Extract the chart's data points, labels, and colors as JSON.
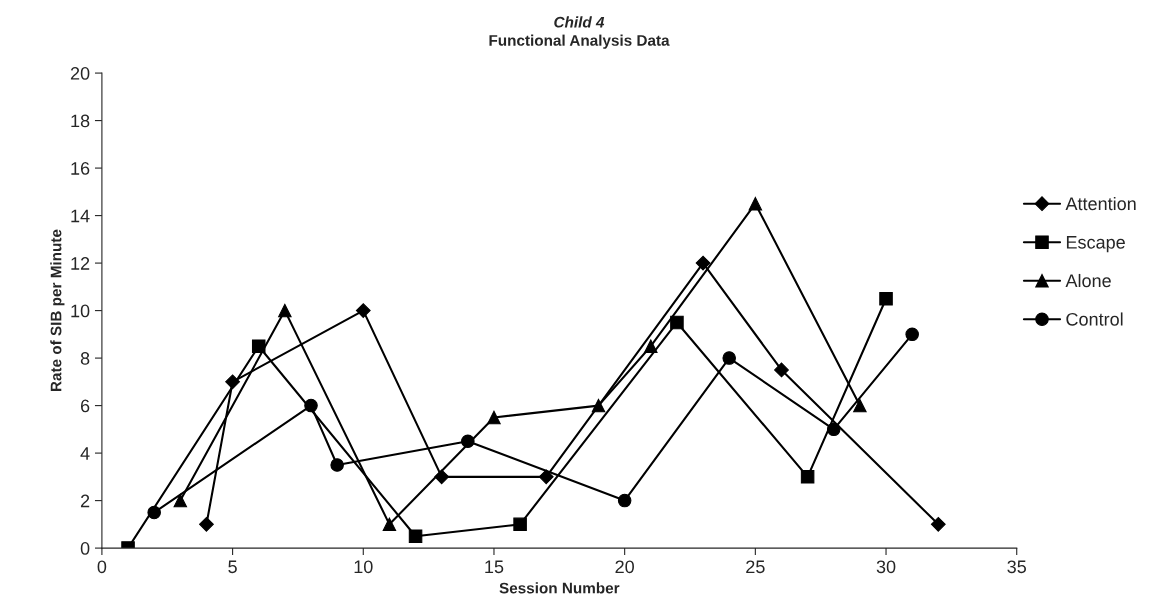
{
  "chart_data": {
    "type": "line",
    "title": "Child 4",
    "subtitle": "Functional Analysis Data",
    "xlabel": "Session Number",
    "ylabel": "Rate of SIB per Minute",
    "xlim": [
      0,
      35
    ],
    "xticks": [
      0,
      5,
      10,
      15,
      20,
      25,
      30,
      35
    ],
    "ylim": [
      0,
      20
    ],
    "yticks": [
      0,
      2,
      4,
      6,
      8,
      10,
      12,
      14,
      16,
      18,
      20
    ],
    "grid": false,
    "legend": "right",
    "series": [
      {
        "name": "Attention",
        "color": "#000000",
        "marker": "diamond",
        "x": [
          4,
          5,
          10,
          13,
          17,
          23,
          26,
          32
        ],
        "values": [
          1,
          7,
          10,
          3,
          3,
          12,
          7.5,
          1
        ]
      },
      {
        "name": "Escape",
        "color": "#000000",
        "marker": "square",
        "x": [
          1,
          6,
          12,
          16,
          22,
          27,
          30
        ],
        "values": [
          0,
          8.5,
          0.5,
          1,
          9.5,
          3,
          10.5
        ]
      },
      {
        "name": "Alone",
        "color": "#000000",
        "marker": "triangle",
        "x": [
          3,
          7,
          11,
          15,
          19,
          21,
          25,
          29
        ],
        "values": [
          2,
          10,
          1,
          5.5,
          6,
          8.5,
          14.5,
          6
        ]
      },
      {
        "name": "Control",
        "color": "#000000",
        "marker": "circle",
        "x": [
          2,
          8,
          9,
          14,
          20,
          24,
          28,
          31
        ],
        "values": [
          1.5,
          6,
          3.5,
          4.5,
          2,
          8,
          5,
          9
        ]
      }
    ]
  }
}
